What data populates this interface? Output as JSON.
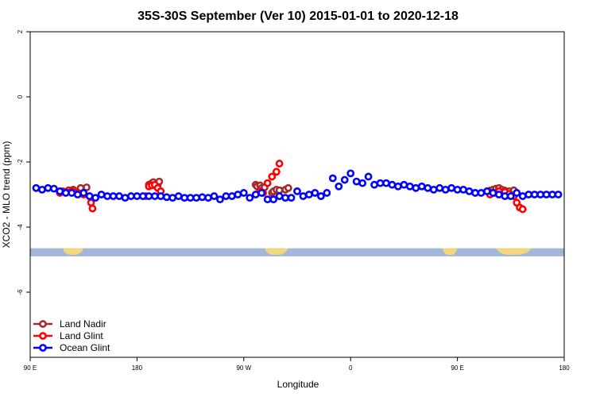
{
  "chart_data": {
    "type": "scatter",
    "title": "35S-30S September (Ver 10)   2015-01-01 to 2020-12-18",
    "xlabel": "Longitude",
    "ylabel": "XCO2 - MLO trend (ppm)",
    "xlim": [
      90,
      450
    ],
    "ylim": [
      -8,
      2
    ],
    "x_ticks": [
      90,
      162,
      234,
      306,
      378,
      450
    ],
    "x_tick_labels": [
      "90 E",
      "180",
      "90 W",
      "0",
      "90 E",
      "180"
    ],
    "y_ticks": [
      2,
      0,
      -2,
      -4,
      -6
    ],
    "y_tick_labels": [
      "2",
      "0",
      "-2",
      "-4",
      "-6"
    ],
    "grid": false,
    "legend_position": "bottom-left",
    "colors": {
      "land_nadir": "#a52a2a",
      "land_glint": "#ff0000",
      "ocean_glint": "#0000ff",
      "ocean_strip": "#a3b8d8",
      "land_strip": "#f2d77e"
    },
    "series": [
      {
        "name": "Land Nadir",
        "color": "#a52a2a",
        "x": [
          112,
          116,
          119,
          124,
          128,
          170,
          172,
          173,
          175,
          176,
          177,
          242,
          243,
          245,
          246,
          248,
          253,
          254,
          256,
          258,
          262,
          264,
          398,
          400,
          402,
          404,
          406,
          408,
          410,
          413,
          416
        ],
        "y": [
          -2.9,
          -2.87,
          -2.85,
          -2.8,
          -2.78,
          -2.7,
          -2.65,
          -2.62,
          -2.75,
          -2.68,
          -2.6,
          -2.7,
          -2.75,
          -2.72,
          -2.8,
          -2.78,
          -2.95,
          -2.9,
          -2.85,
          -2.87,
          -2.85,
          -2.8,
          -2.9,
          -2.88,
          -2.85,
          -2.82,
          -2.8,
          -2.85,
          -2.88,
          -2.9,
          -2.87
        ]
      },
      {
        "name": "Land Glint",
        "color": "#ff0000",
        "x": [
          110,
          114,
          118,
          122,
          126,
          130,
          131,
          132,
          168,
          170,
          172,
          174,
          176,
          178,
          245,
          247,
          250,
          253,
          256,
          258,
          400,
          403,
          406,
          410,
          413,
          416,
          418,
          420,
          422
        ],
        "y": [
          -2.95,
          -2.92,
          -2.9,
          -2.95,
          -3.0,
          -3.05,
          -3.25,
          -3.43,
          -3.05,
          -2.75,
          -2.72,
          -2.7,
          -2.8,
          -2.9,
          -2.9,
          -2.95,
          -2.65,
          -2.45,
          -2.3,
          -2.05,
          -3.0,
          -2.95,
          -2.9,
          -2.92,
          -2.98,
          -3.05,
          -3.25,
          -3.4,
          -3.45
        ]
      },
      {
        "name": "Ocean Glint",
        "color": "#0000ff",
        "x": [
          94,
          98,
          102,
          106,
          110,
          114,
          118,
          122,
          126,
          130,
          134,
          138,
          142,
          146,
          150,
          154,
          158,
          162,
          166,
          170,
          174,
          178,
          182,
          186,
          190,
          194,
          198,
          202,
          206,
          210,
          214,
          218,
          222,
          226,
          230,
          234,
          238,
          242,
          246,
          250,
          254,
          258,
          262,
          266,
          270,
          274,
          278,
          282,
          286,
          290,
          294,
          298,
          302,
          306,
          310,
          314,
          318,
          322,
          326,
          330,
          334,
          338,
          342,
          346,
          350,
          354,
          358,
          362,
          366,
          370,
          374,
          378,
          382,
          386,
          390,
          394,
          398,
          402,
          406,
          410,
          414,
          418,
          422,
          426,
          430,
          434,
          438,
          442,
          446
        ],
        "y": [
          -2.8,
          -2.85,
          -2.8,
          -2.82,
          -2.9,
          -2.95,
          -2.95,
          -3.0,
          -2.95,
          -3.05,
          -3.1,
          -3.0,
          -3.05,
          -3.05,
          -3.05,
          -3.1,
          -3.05,
          -3.05,
          -3.05,
          -3.05,
          -3.05,
          -3.05,
          -3.08,
          -3.1,
          -3.05,
          -3.1,
          -3.1,
          -3.1,
          -3.08,
          -3.1,
          -3.05,
          -3.15,
          -3.05,
          -3.05,
          -3.0,
          -2.95,
          -3.1,
          -3.0,
          -2.95,
          -3.15,
          -3.15,
          -3.05,
          -3.1,
          -3.1,
          -2.9,
          -3.05,
          -3.0,
          -2.95,
          -3.05,
          -2.95,
          -2.5,
          -2.75,
          -2.55,
          -2.35,
          -2.6,
          -2.65,
          -2.45,
          -2.7,
          -2.65,
          -2.65,
          -2.7,
          -2.75,
          -2.7,
          -2.75,
          -2.8,
          -2.75,
          -2.8,
          -2.85,
          -2.8,
          -2.85,
          -2.8,
          -2.85,
          -2.85,
          -2.9,
          -2.95,
          -2.95,
          -2.9,
          -2.95,
          -3.0,
          -3.05,
          -3.05,
          -2.95,
          -3.05,
          -3.0,
          -3.0,
          -3.0,
          -3.0,
          -3.0,
          -3.0
        ]
      }
    ],
    "land_segments_lon": [
      [
        112,
        126
      ],
      [
        248,
        264
      ],
      [
        368,
        378
      ],
      [
        404,
        428
      ]
    ],
    "strip_y_range": [
      -4.9,
      -4.65
    ]
  }
}
